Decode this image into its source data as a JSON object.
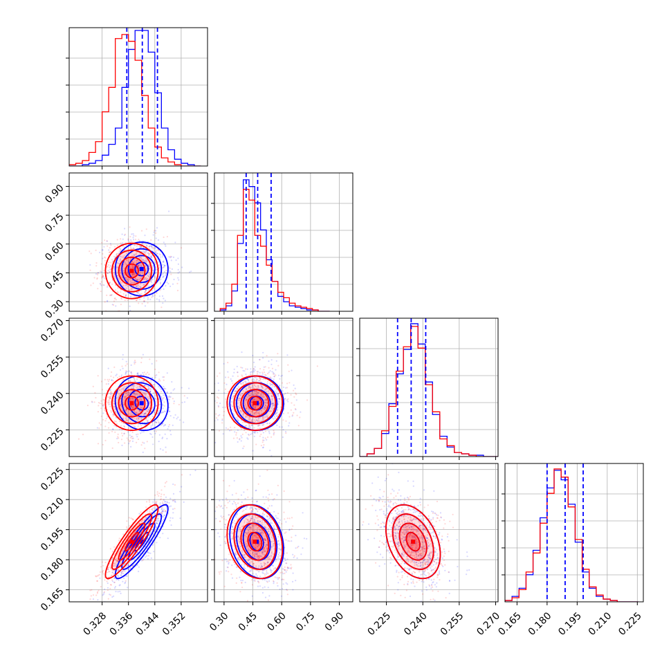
{
  "chart_data": {
    "type": "corner",
    "grid": true,
    "colors": {
      "series_a": "#0000ff",
      "series_b": "#ff0000",
      "quantile": "#0000ff",
      "grid": "#b0b0b0"
    },
    "series": [
      {
        "color": "#0000ff",
        "means": [
          0.34,
          0.47,
          0.236,
          0.189
        ],
        "sds": [
          0.004,
          0.07,
          0.0056,
          0.0092
        ]
      },
      {
        "color": "#ff0000",
        "means": [
          0.337,
          0.46,
          0.236,
          0.189
        ],
        "sds": [
          0.004,
          0.072,
          0.0056,
          0.0092
        ]
      }
    ],
    "correlations": [
      {
        "pair": [
          0,
          1
        ],
        "series_a": 0.0,
        "series_b": 0.0
      },
      {
        "pair": [
          0,
          2
        ],
        "series_a": -0.1,
        "series_b": 0.0
      },
      {
        "pair": [
          0,
          3
        ],
        "series_a": 0.9,
        "series_b": 0.9
      },
      {
        "pair": [
          1,
          2
        ],
        "series_a": 0.0,
        "series_b": 0.0
      },
      {
        "pair": [
          1,
          3
        ],
        "series_a": -0.2,
        "series_b": -0.2
      },
      {
        "pair": [
          2,
          3
        ],
        "series_a": -0.35,
        "series_b": -0.35
      }
    ],
    "axes": [
      {
        "range": [
          0.318,
          0.36
        ],
        "ticks": [
          0.328,
          0.336,
          0.344,
          0.352
        ],
        "tick_labels": [
          "0.328",
          "0.336",
          "0.344",
          "0.352"
        ]
      },
      {
        "range": [
          0.25,
          0.97
        ],
        "ticks": [
          0.3,
          0.45,
          0.6,
          0.75,
          0.9
        ],
        "tick_labels": [
          "0.30",
          "0.45",
          "0.60",
          "0.75",
          "0.90"
        ]
      },
      {
        "range": [
          0.214,
          0.271
        ],
        "ticks": [
          0.225,
          0.24,
          0.255,
          0.27
        ],
        "tick_labels": [
          "0.225",
          "0.240",
          "0.255",
          "0.270"
        ]
      },
      {
        "range": [
          0.159,
          0.228
        ],
        "ticks": [
          0.165,
          0.18,
          0.195,
          0.21,
          0.225
        ],
        "tick_labels": [
          "0.165",
          "0.180",
          "0.195",
          "0.210",
          "0.225"
        ]
      }
    ],
    "quantiles": [
      [
        0.3355,
        0.3402,
        0.3448
      ],
      [
        0.415,
        0.475,
        0.545
      ],
      [
        0.2296,
        0.2352,
        0.2412
      ],
      [
        0.18,
        0.189,
        0.198
      ]
    ],
    "histograms": [
      {
        "bins": [
          0.318,
          0.32,
          0.322,
          0.324,
          0.326,
          0.328,
          0.33,
          0.332,
          0.334,
          0.336,
          0.338,
          0.34,
          0.342,
          0.344,
          0.346,
          0.348,
          0.35,
          0.352,
          0.354,
          0.356,
          0.358
        ],
        "series_a": [
          0,
          0,
          0.01,
          0.02,
          0.04,
          0.08,
          0.16,
          0.28,
          0.58,
          0.86,
          1.0,
          1.0,
          0.84,
          0.54,
          0.28,
          0.12,
          0.05,
          0.02,
          0.01,
          0
        ],
        "series_b": [
          0.01,
          0.02,
          0.04,
          0.1,
          0.18,
          0.4,
          0.58,
          0.94,
          0.97,
          0.92,
          0.78,
          0.52,
          0.28,
          0.14,
          0.06,
          0.03,
          0.01,
          0,
          0,
          0
        ]
      },
      {
        "bins": [
          0.28,
          0.31,
          0.34,
          0.37,
          0.4,
          0.43,
          0.46,
          0.49,
          0.52,
          0.55,
          0.58,
          0.61,
          0.64,
          0.67,
          0.7,
          0.73,
          0.76,
          0.79,
          0.82,
          0.85
        ],
        "series_a": [
          0.01,
          0.04,
          0.15,
          0.5,
          0.97,
          0.92,
          0.8,
          0.6,
          0.38,
          0.22,
          0.11,
          0.07,
          0.04,
          0.03,
          0.02,
          0.01,
          0.01,
          0,
          0
        ],
        "series_b": [
          0.02,
          0.06,
          0.2,
          0.56,
          0.9,
          0.82,
          0.56,
          0.48,
          0.34,
          0.22,
          0.14,
          0.1,
          0.06,
          0.04,
          0.03,
          0.02,
          0.01,
          0,
          0
        ]
      },
      {
        "bins": [
          0.214,
          0.217,
          0.22,
          0.223,
          0.226,
          0.229,
          0.232,
          0.235,
          0.238,
          0.241,
          0.244,
          0.247,
          0.25,
          0.253,
          0.256,
          0.259,
          0.262,
          0.265,
          0.268,
          0.271
        ],
        "series_a": [
          0,
          0.02,
          0.06,
          0.17,
          0.39,
          0.61,
          0.79,
          0.98,
          0.83,
          0.55,
          0.31,
          0.15,
          0.07,
          0.03,
          0.02,
          0.01,
          0.01,
          0,
          0
        ],
        "series_b": [
          0,
          0.02,
          0.06,
          0.19,
          0.37,
          0.63,
          0.81,
          0.96,
          0.8,
          0.53,
          0.33,
          0.13,
          0.08,
          0.03,
          0.02,
          0.01,
          0,
          0,
          0
        ]
      },
      {
        "bins": [
          0.159,
          0.1625,
          0.166,
          0.1695,
          0.173,
          0.1765,
          0.18,
          0.1835,
          0.187,
          0.1905,
          0.194,
          0.1975,
          0.201,
          0.2045,
          0.208,
          0.2115,
          0.215,
          0.2185,
          0.222,
          0.2255
        ],
        "series_a": [
          0.01,
          0.04,
          0.1,
          0.2,
          0.38,
          0.62,
          0.84,
          0.97,
          0.9,
          0.72,
          0.44,
          0.22,
          0.1,
          0.04,
          0.02,
          0.01,
          0,
          0,
          0
        ],
        "series_b": [
          0.01,
          0.03,
          0.09,
          0.22,
          0.36,
          0.58,
          0.8,
          0.98,
          0.92,
          0.7,
          0.46,
          0.24,
          0.11,
          0.05,
          0.02,
          0.01,
          0,
          0,
          0
        ]
      }
    ]
  }
}
